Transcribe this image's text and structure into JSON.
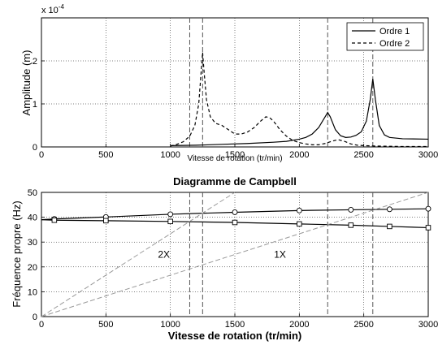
{
  "chart_data": [
    {
      "type": "line",
      "title": "",
      "xlabel": "Vitesse de rotation (tr/min)",
      "ylabel": "Amplitude (m)",
      "y_exponent_label": "x 10",
      "y_exponent_power": "-4",
      "xlim": [
        0,
        3000
      ],
      "ylim": [
        0,
        0.0003
      ],
      "xticks": [
        "0",
        "500",
        "1000",
        "1500",
        "2000",
        "2500",
        "3000"
      ],
      "yticks": [
        "0",
        "1",
        "2"
      ],
      "grid": true,
      "legend_position": "top-right",
      "vlines": [
        1150,
        1250,
        2220,
        2570
      ],
      "series": [
        {
          "name": "Ordre 1",
          "style": "solid",
          "x": [
            1000,
            1200,
            1400,
            1600,
            1800,
            1900,
            2000,
            2050,
            2100,
            2150,
            2200,
            2220,
            2240,
            2280,
            2320,
            2360,
            2400,
            2440,
            2480,
            2520,
            2550,
            2570,
            2590,
            2620,
            2660,
            2700,
            2800,
            3000
          ],
          "y": [
            3e-06,
            4e-06,
            6e-06,
            8e-06,
            1.1e-05,
            1.3e-05,
            1.8e-05,
            2.2e-05,
            3e-05,
            4.5e-05,
            7e-05,
            8e-05,
            7e-05,
            4e-05,
            2.6e-05,
            2.2e-05,
            2.3e-05,
            2.7e-05,
            3.5e-05,
            6e-05,
            0.00011,
            0.000158,
            0.00011,
            5e-05,
            2.8e-05,
            2.2e-05,
            1.9e-05,
            1.8e-05
          ]
        },
        {
          "name": "Ordre 2",
          "style": "dashed",
          "x": [
            1000,
            1050,
            1100,
            1150,
            1190,
            1220,
            1240,
            1250,
            1260,
            1280,
            1310,
            1350,
            1400,
            1450,
            1500,
            1550,
            1600,
            1650,
            1700,
            1740,
            1770,
            1800,
            1850,
            1900,
            1950,
            2000,
            2050,
            2100,
            2150,
            2200,
            2250,
            2300,
            2350,
            2400,
            2450,
            2500,
            2600,
            2800,
            3000
          ],
          "y": [
            2e-06,
            6e-06,
            1.2e-05,
            2.5e-05,
            5e-05,
            0.0001,
            0.00018,
            0.00022,
            0.00018,
            0.00011,
            7e-05,
            5.5e-05,
            5e-05,
            4e-05,
            3e-05,
            3e-05,
            3.5e-05,
            4.5e-05,
            6e-05,
            7e-05,
            6.8e-05,
            6e-05,
            4e-05,
            2.5e-05,
            1.5e-05,
            1e-05,
            7e-06,
            5e-06,
            5e-06,
            8e-06,
            1.3e-05,
            1.7e-05,
            1.3e-05,
            7e-06,
            4e-06,
            3e-06,
            2e-06,
            1e-06,
            1e-06
          ]
        }
      ]
    },
    {
      "type": "line",
      "title": "Diagramme de Campbell",
      "xlabel": "Vitesse de rotation (tr/min)",
      "ylabel": "Fréquence propre (Hz)",
      "xlim": [
        0,
        3000
      ],
      "ylim": [
        0,
        50
      ],
      "xticks": [
        "0",
        "500",
        "1000",
        "1500",
        "2000",
        "2500",
        "3000"
      ],
      "yticks": [
        "0",
        "10",
        "20",
        "30",
        "40",
        "50"
      ],
      "grid": true,
      "vlines": [
        1150,
        1250,
        2220,
        2570
      ],
      "series": [
        {
          "marker": "circle",
          "x": [
            0,
            100,
            500,
            1000,
            1500,
            2000,
            2400,
            2700,
            3000
          ],
          "y": [
            39,
            39.3,
            40.1,
            41.2,
            42,
            42.7,
            43,
            43.2,
            43.4
          ]
        },
        {
          "marker": "square",
          "x": [
            0,
            100,
            500,
            1000,
            1500,
            2000,
            2400,
            2700,
            3000
          ],
          "y": [
            39,
            38.8,
            38.6,
            38.3,
            37.9,
            37.3,
            36.8,
            36.3,
            35.8
          ]
        },
        {
          "label": "2X",
          "style": "dashed-gray",
          "x": [
            0,
            1500
          ],
          "y": [
            0,
            50
          ]
        },
        {
          "label": "1X",
          "style": "dashed-gray",
          "x": [
            0,
            3000
          ],
          "y": [
            0,
            50
          ]
        }
      ],
      "annotations": [
        {
          "text": "2X",
          "x": 950,
          "y": 25
        },
        {
          "text": "1X",
          "x": 1850,
          "y": 25
        }
      ]
    }
  ]
}
